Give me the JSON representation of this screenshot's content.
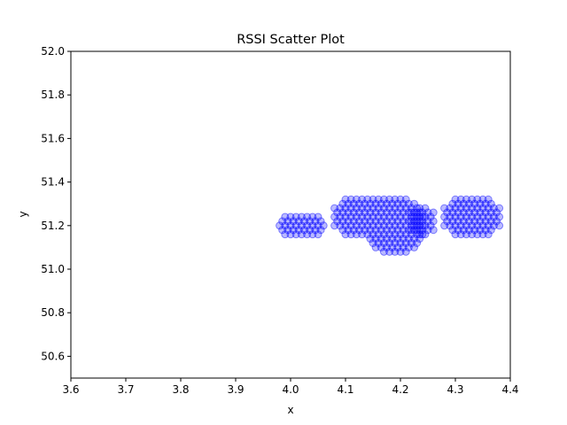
{
  "chart_data": {
    "type": "scatter",
    "title": "RSSI Scatter Plot",
    "xlabel": "x",
    "ylabel": "y",
    "xlim": [
      3.6,
      4.4
    ],
    "ylim": [
      50.5,
      52.0
    ],
    "x_ticks": [
      "3.6",
      "3.7",
      "3.8",
      "3.9",
      "4.0",
      "4.1",
      "4.2",
      "4.3",
      "4.4"
    ],
    "y_ticks": [
      "50.6",
      "50.8",
      "51.0",
      "51.2",
      "51.4",
      "51.6",
      "51.8",
      "52.0"
    ],
    "marker_color": "#0000ff",
    "marker_alpha": 0.45,
    "grid": false,
    "clusters": [
      {
        "cx": 4.02,
        "cy": 51.2,
        "rx": 0.045,
        "ry": 0.055
      },
      {
        "cx": 4.13,
        "cy": 51.24,
        "rx": 0.055,
        "ry": 0.1
      },
      {
        "cx": 4.19,
        "cy": 51.2,
        "rx": 0.055,
        "ry": 0.13
      },
      {
        "cx": 4.24,
        "cy": 51.22,
        "rx": 0.025,
        "ry": 0.07
      },
      {
        "cx": 4.33,
        "cy": 51.24,
        "rx": 0.055,
        "ry": 0.1
      }
    ]
  }
}
